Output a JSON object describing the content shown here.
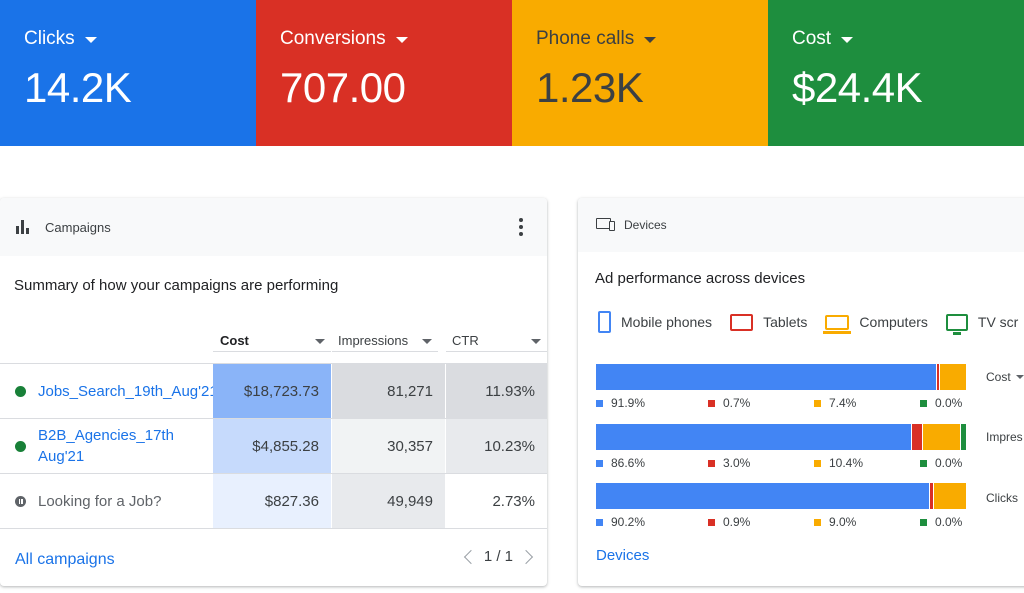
{
  "kpis": [
    {
      "label": "Clicks",
      "value": "14.2K",
      "color": "#1a73e8"
    },
    {
      "label": "Conversions",
      "value": "707.00",
      "color": "#d93025"
    },
    {
      "label": "Phone calls",
      "value": "1.23K",
      "color": "#f9ab00"
    },
    {
      "label": "Cost",
      "value": "$24.4K",
      "color": "#1e8e3e"
    }
  ],
  "campaigns": {
    "title": "Campaigns",
    "summary": "Summary of how your campaigns are performing",
    "columns": {
      "cost": "Cost",
      "impressions": "Impressions",
      "ctr": "CTR"
    },
    "rows": [
      {
        "name": "Jobs_Search_19th_Aug'21",
        "status": "enabled",
        "cost": "$18,723.73",
        "impressions": "81,271",
        "ctr": "11.93%"
      },
      {
        "name": "B2B_Agencies_17th Aug'21",
        "status": "enabled",
        "cost": "$4,855.28",
        "impressions": "30,357",
        "ctr": "10.23%"
      },
      {
        "name": "Looking for a Job?",
        "status": "paused",
        "cost": "$827.36",
        "impressions": "49,949",
        "ctr": "2.73%"
      }
    ],
    "cell_colors": {
      "cost": [
        "#8ab4f8",
        "#c6dafc",
        "#e8f0fe"
      ],
      "impressions": [
        "#dadce0",
        "#f1f3f4",
        "#e8eaed"
      ],
      "ctr": [
        "#dadce0",
        "#e8eaed",
        "#ffffff"
      ]
    },
    "footer_link": "All campaigns",
    "pager": "1 / 1"
  },
  "devices": {
    "title": "Devices",
    "subtitle": "Ad performance across devices",
    "legend": [
      {
        "label": "Mobile phones",
        "icon": "mobile-phone-icon",
        "color": "#4285f4"
      },
      {
        "label": "Tablets",
        "icon": "tablet-icon",
        "color": "#d93025"
      },
      {
        "label": "Computers",
        "icon": "computer-icon",
        "color": "#f9ab00"
      },
      {
        "label": "TV scr",
        "icon": "tv-screen-icon",
        "color": "#1e8e3e"
      }
    ],
    "metrics": [
      {
        "label": "Cost",
        "has_dropdown": true,
        "shares": [
          91.9,
          0.7,
          7.4,
          0.0
        ],
        "share_labels": [
          "91.9%",
          "0.7%",
          "7.4%",
          "0.0%"
        ]
      },
      {
        "label": "Impres",
        "has_dropdown": false,
        "shares": [
          86.6,
          3.0,
          10.4,
          0.0
        ],
        "share_labels": [
          "86.6%",
          "3.0%",
          "10.4%",
          "0.0%"
        ],
        "tv_visible": true
      },
      {
        "label": "Clicks",
        "has_dropdown": false,
        "shares": [
          90.2,
          0.9,
          9.0,
          0.0
        ],
        "share_labels": [
          "90.2%",
          "0.9%",
          "9.0%",
          "0.0%"
        ]
      }
    ],
    "footer_link": "Devices"
  }
}
